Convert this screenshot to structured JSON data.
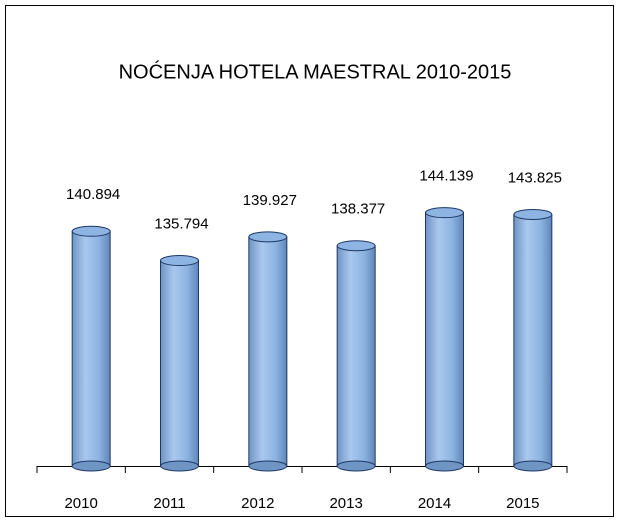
{
  "chart_data": {
    "type": "bar",
    "title": "NOĆENJA HOTELA MAESTRAL 2010-2015",
    "categories": [
      "2010",
      "2011",
      "2012",
      "2013",
      "2014",
      "2015"
    ],
    "values": [
      140894,
      135794,
      139927,
      138377,
      144139,
      143825
    ],
    "value_labels": [
      "140.894",
      "135.794",
      "139.927",
      "138.377",
      "144.139",
      "143.825"
    ],
    "color": "#8db4e2",
    "ylim": [
      100000,
      150000
    ]
  }
}
